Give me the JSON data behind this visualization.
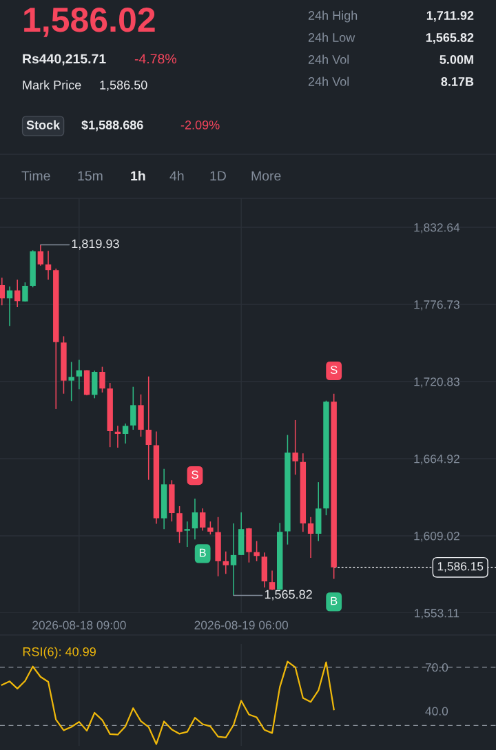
{
  "chart_data": [
    {
      "type": "candlestick",
      "title": "1,586.02",
      "annotations": [
        "Rs440,215.71",
        "-4.78%",
        "Mark Price",
        "1,586.50",
        "24h High",
        "1,711.92",
        "24h Low",
        "1,565.82",
        "24h Vol",
        "5.00M",
        "24h Vol",
        "8.17B",
        "Stock",
        "$1,588.686",
        "-2.09%",
        "Time",
        "15m",
        "1h",
        "4h",
        "1D",
        "More",
        {
          "text": "1,819.93",
          "x": "2026-08-18T04:00",
          "y": 1819.93
        },
        {
          "text": "1,565.82",
          "x": "2026-08-19T05:00",
          "y": 1565.82
        },
        {
          "text": "S",
          "x": "2026-08-19T00:00",
          "y": 1636.0
        },
        {
          "text": "B",
          "x": "2026-08-19T01:00",
          "y": 1612.7
        },
        {
          "text": "S",
          "x": "2026-08-19T18:00",
          "y": 1711.92
        },
        {
          "text": "B",
          "x": "2026-08-19T18:00",
          "y": 1577.8
        }
      ],
      "x": [
        "2026-08-17T23:00",
        "2026-08-18T00:00",
        "2026-08-18T01:00",
        "2026-08-18T02:00",
        "2026-08-18T03:00",
        "2026-08-18T04:00",
        "2026-08-18T05:00",
        "2026-08-18T06:00",
        "2026-08-18T07:00",
        "2026-08-18T08:00",
        "2026-08-18T09:00",
        "2026-08-18T10:00",
        "2026-08-18T11:00",
        "2026-08-18T12:00",
        "2026-08-18T13:00",
        "2026-08-18T14:00",
        "2026-08-18T15:00",
        "2026-08-18T16:00",
        "2026-08-18T17:00",
        "2026-08-18T18:00",
        "2026-08-18T19:00",
        "2026-08-18T20:00",
        "2026-08-18T21:00",
        "2026-08-18T22:00",
        "2026-08-18T23:00",
        "2026-08-19T00:00",
        "2026-08-19T01:00",
        "2026-08-19T02:00",
        "2026-08-19T03:00",
        "2026-08-19T04:00",
        "2026-08-19T05:00",
        "2026-08-19T06:00",
        "2026-08-19T07:00",
        "2026-08-19T08:00",
        "2026-08-19T09:00",
        "2026-08-19T10:00",
        "2026-08-19T11:00",
        "2026-08-19T12:00",
        "2026-08-19T13:00",
        "2026-08-19T14:00",
        "2026-08-19T15:00",
        "2026-08-19T16:00",
        "2026-08-19T17:00",
        "2026-08-19T18:00"
      ],
      "ohlc": [
        [
          1790.7,
          1796.1,
          1776.1,
          1781.1
        ],
        [
          1781.1,
          1789.7,
          1761.1,
          1786.9
        ],
        [
          1786.9,
          1794.7,
          1774.7,
          1779.1
        ],
        [
          1778.9,
          1792.7,
          1778.9,
          1790.2
        ],
        [
          1790.2,
          1816.0,
          1789.1,
          1815.2
        ],
        [
          1815.2,
          1819.93,
          1804.8,
          1805.7
        ],
        [
          1805.7,
          1815.5,
          1794.7,
          1801.6
        ],
        [
          1801.6,
          1802.7,
          1700.9,
          1749.4
        ],
        [
          1749.1,
          1753.6,
          1712.0,
          1721.5
        ],
        [
          1721.5,
          1735.0,
          1706.7,
          1724.2
        ],
        [
          1724.5,
          1736.5,
          1715.2,
          1729.0
        ],
        [
          1729.0,
          1729.0,
          1710.9,
          1711.2
        ],
        [
          1711.2,
          1728.7,
          1708.7,
          1727.8
        ],
        [
          1727.8,
          1731.5,
          1712.9,
          1715.8
        ],
        [
          1715.8,
          1719.8,
          1673.3,
          1684.9
        ],
        [
          1684.5,
          1688.7,
          1672.9,
          1682.9
        ],
        [
          1682.9,
          1690.4,
          1675.9,
          1688.7
        ],
        [
          1689.0,
          1717.0,
          1685.9,
          1703.7
        ],
        [
          1703.7,
          1711.5,
          1680.9,
          1685.9
        ],
        [
          1685.9,
          1724.5,
          1649.6,
          1674.9
        ],
        [
          1674.6,
          1684.6,
          1617.7,
          1621.7
        ],
        [
          1621.7,
          1657.6,
          1613.9,
          1646.3
        ],
        [
          1646.3,
          1649.3,
          1619.4,
          1625.5
        ],
        [
          1625.4,
          1630.5,
          1603.9,
          1611.9
        ],
        [
          1612.7,
          1619.4,
          1601.0,
          1613.9
        ],
        [
          1614.4,
          1636.0,
          1606.4,
          1626.0
        ],
        [
          1626.0,
          1628.9,
          1612.7,
          1615.0
        ],
        [
          1615.0,
          1619.4,
          1610.0,
          1612.0
        ],
        [
          1611.7,
          1622.6,
          1579.7,
          1590.6
        ],
        [
          1590.6,
          1597.7,
          1581.4,
          1587.7
        ],
        [
          1587.7,
          1618.0,
          1565.82,
          1595.1
        ],
        [
          1595.1,
          1626.0,
          1595.1,
          1613.9
        ],
        [
          1614.4,
          1614.7,
          1589.7,
          1597.2
        ],
        [
          1597.2,
          1605.2,
          1590.6,
          1594.4
        ],
        [
          1593.9,
          1596.9,
          1571.6,
          1576.0
        ],
        [
          1575.5,
          1583.8,
          1569.7,
          1570.0
        ],
        [
          1570.0,
          1618.4,
          1570.0,
          1611.9
        ],
        [
          1612.2,
          1682.1,
          1602.7,
          1669.3
        ],
        [
          1669.3,
          1692.9,
          1653.3,
          1663.0
        ],
        [
          1662.6,
          1668.8,
          1611.9,
          1618.0
        ],
        [
          1618.0,
          1622.6,
          1593.1,
          1610.5
        ],
        [
          1610.5,
          1647.9,
          1605.2,
          1628.8
        ],
        [
          1628.8,
          1707.0,
          1623.9,
          1706.2
        ],
        [
          1706.2,
          1711.92,
          1577.8,
          1586.15
        ]
      ],
      "xlim": [
        "2026-08-17T22:45",
        "2026-08-20T15:00"
      ],
      "xticks": [
        {
          "value": "2026-08-18T09:00",
          "label": "2026-08-18 09:00"
        },
        {
          "value": "2026-08-19T06:00",
          "label": "2026-08-19 06:00"
        }
      ],
      "ylim": [
        1553.11,
        1853.6
      ],
      "yticks": [
        {
          "value": 1553.11,
          "label": "1,553.11"
        },
        {
          "value": 1609.02,
          "label": "1,609.02"
        },
        {
          "value": 1664.92,
          "label": "1,664.92"
        },
        {
          "value": 1720.83,
          "label": "1,720.83"
        },
        {
          "value": 1776.73,
          "label": "1,776.73"
        },
        {
          "value": 1832.64,
          "label": "1,832.64"
        }
      ],
      "ref_lines": [
        {
          "axis": "y",
          "value": 1586.15,
          "label": "1,586.15",
          "color": "#eaecef",
          "line_style": "dotted"
        }
      ],
      "grid": true
    },
    {
      "type": "line",
      "x": [
        "2026-08-17T23:00",
        "2026-08-18T00:00",
        "2026-08-18T01:00",
        "2026-08-18T02:00",
        "2026-08-18T03:00",
        "2026-08-18T04:00",
        "2026-08-18T05:00",
        "2026-08-18T06:00",
        "2026-08-18T07:00",
        "2026-08-18T08:00",
        "2026-08-18T09:00",
        "2026-08-18T10:00",
        "2026-08-18T11:00",
        "2026-08-18T12:00",
        "2026-08-18T13:00",
        "2026-08-18T14:00",
        "2026-08-18T15:00",
        "2026-08-18T16:00",
        "2026-08-18T17:00",
        "2026-08-18T18:00",
        "2026-08-18T19:00",
        "2026-08-18T20:00",
        "2026-08-18T21:00",
        "2026-08-18T22:00",
        "2026-08-18T23:00",
        "2026-08-19T00:00",
        "2026-08-19T01:00",
        "2026-08-19T02:00",
        "2026-08-19T03:00",
        "2026-08-19T04:00",
        "2026-08-19T05:00",
        "2026-08-19T06:00",
        "2026-08-19T07:00",
        "2026-08-19T08:00",
        "2026-08-19T09:00",
        "2026-08-19T10:00",
        "2026-08-19T11:00",
        "2026-08-19T12:00",
        "2026-08-19T13:00",
        "2026-08-19T14:00",
        "2026-08-19T15:00",
        "2026-08-19T16:00",
        "2026-08-19T17:00",
        "2026-08-19T18:00"
      ],
      "series": [
        {
          "name": "RSI(6): 40.99",
          "color": "#f0b90b",
          "values": [
            57.9,
            60.3,
            55.3,
            60.6,
            70.5,
            63.4,
            60.0,
            34.0,
            26.7,
            29.0,
            32.5,
            26.4,
            38.7,
            33.7,
            24.1,
            23.7,
            29.4,
            41.9,
            33.0,
            29.0,
            17.2,
            32.8,
            27.2,
            24.3,
            25.6,
            35.3,
            30.9,
            29.4,
            22.3,
            21.7,
            30.3,
            47.0,
            37.5,
            35.6,
            27.0,
            24.8,
            56.4,
            73.9,
            70.0,
            48.9,
            46.2,
            54.1,
            73.4,
            40.99
          ]
        }
      ],
      "xlim": [
        "2026-08-17T22:45",
        "2026-08-20T15:00"
      ],
      "xticks": [
        {
          "value": "2026-08-18T09:00",
          "label": null
        },
        {
          "value": "2026-08-19T06:00",
          "label": null
        }
      ],
      "ylim": [
        16,
        86
      ],
      "yticks": [
        {
          "value": 70,
          "label": "70.0"
        },
        {
          "value": 40,
          "label": "40.0"
        }
      ],
      "ref_lines": [
        {
          "axis": "y",
          "value": 70,
          "color": "#8c939d",
          "line_style": "dashed"
        },
        {
          "axis": "y",
          "value": 30,
          "color": "#8c939d",
          "line_style": "dashed"
        }
      ],
      "tick_labels": "y",
      "grid": "x",
      "legend": "top left",
      "marker": "none",
      "line_style": "solid"
    }
  ]
}
